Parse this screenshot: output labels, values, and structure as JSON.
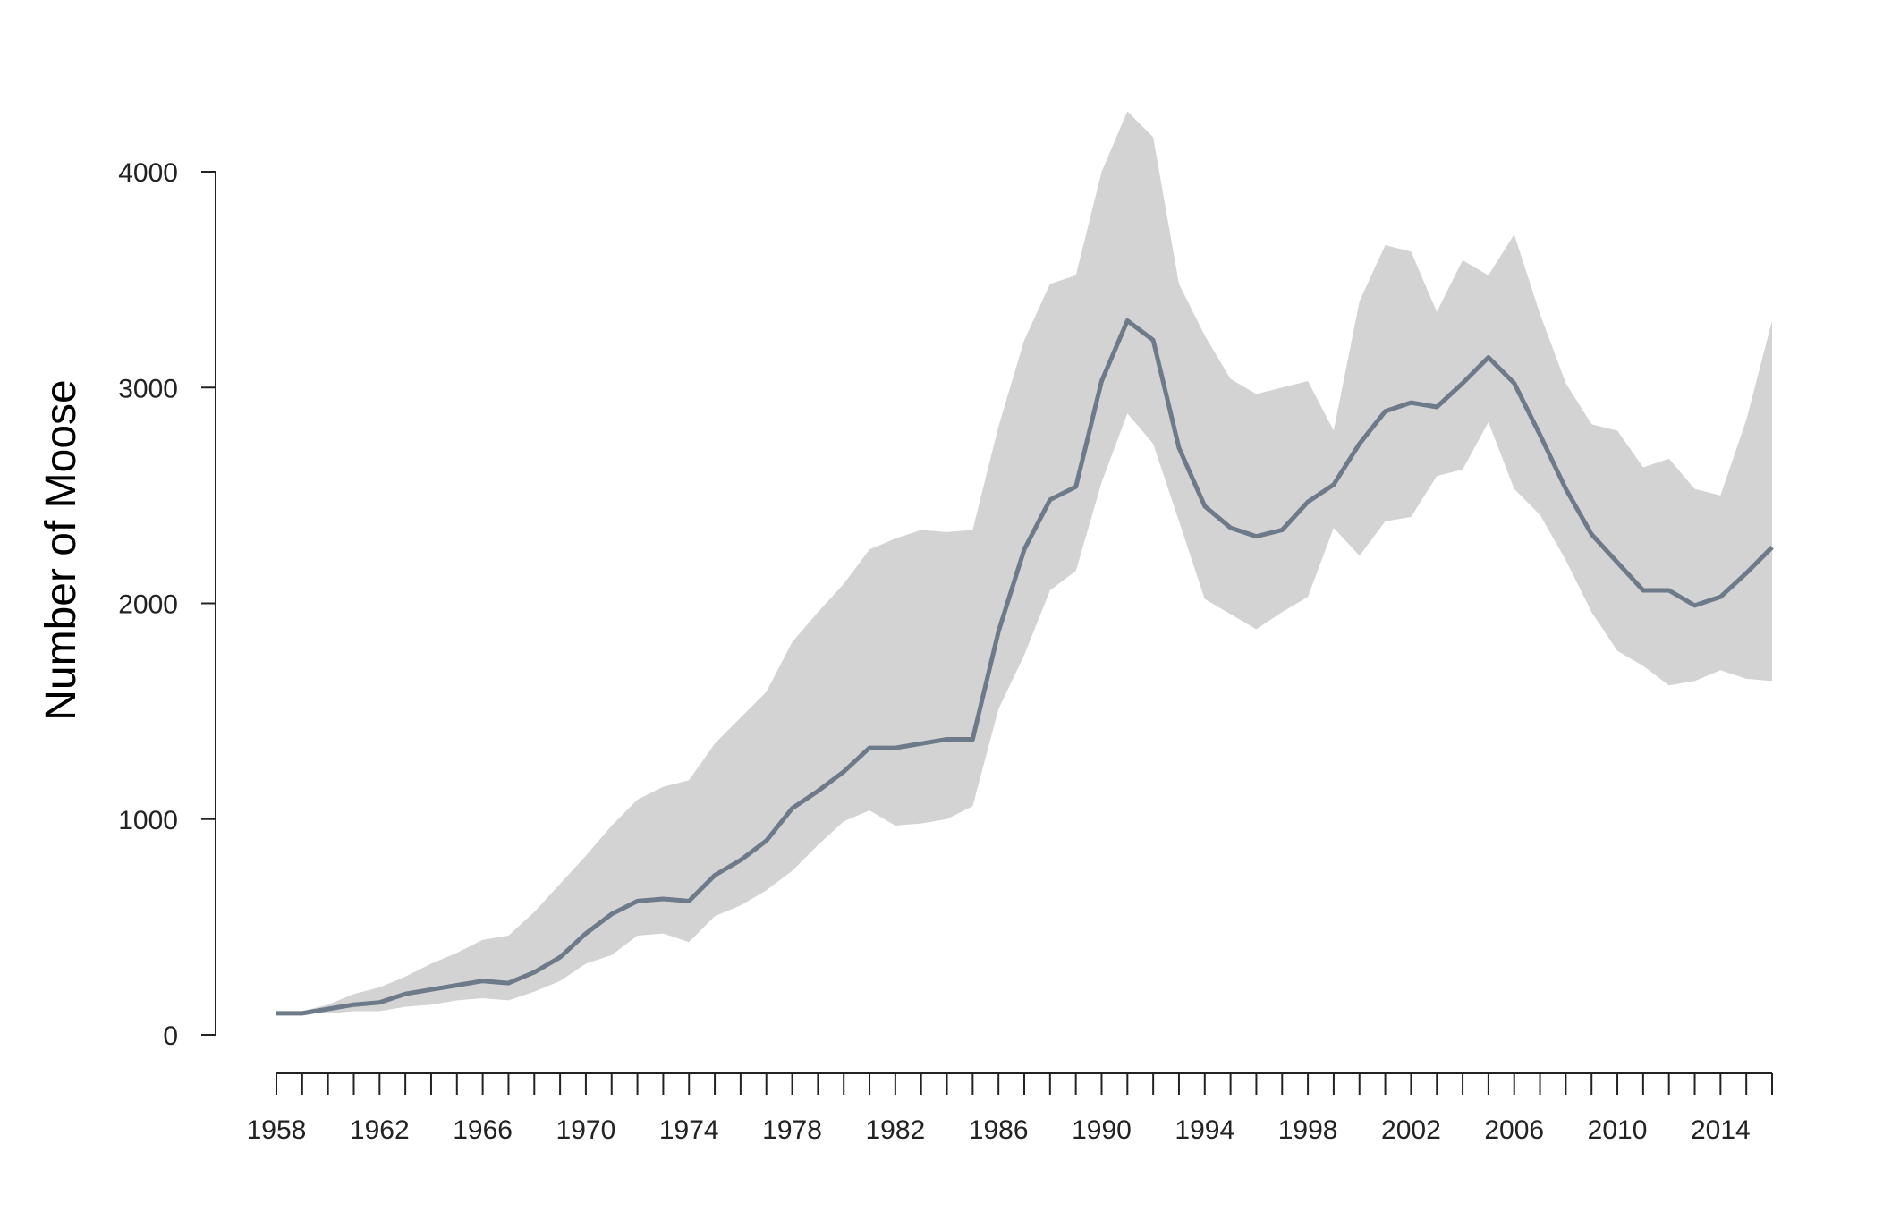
{
  "chart_data": {
    "type": "line",
    "title": "",
    "xlabel": "",
    "ylabel": "Number of Moose",
    "xlim": [
      1958,
      2016
    ],
    "ylim": [
      0,
      4000
    ],
    "y_ticks": [
      0,
      1000,
      2000,
      3000,
      4000
    ],
    "x_ticks_minor_step": 1,
    "x_tick_labels": [
      1958,
      1962,
      1966,
      1970,
      1974,
      1978,
      1982,
      1986,
      1990,
      1994,
      1998,
      2002,
      2006,
      2010,
      2014
    ],
    "grid": false,
    "colors": {
      "line": "#6c7a89",
      "band": "#d3d3d3",
      "axis": "#222222"
    },
    "x": [
      1958,
      1959,
      1960,
      1961,
      1962,
      1963,
      1964,
      1965,
      1966,
      1967,
      1968,
      1969,
      1970,
      1971,
      1972,
      1973,
      1974,
      1975,
      1976,
      1977,
      1978,
      1979,
      1980,
      1981,
      1982,
      1983,
      1984,
      1985,
      1986,
      1987,
      1988,
      1989,
      1990,
      1991,
      1992,
      1993,
      1994,
      1995,
      1996,
      1997,
      1998,
      1999,
      2000,
      2001,
      2002,
      2003,
      2004,
      2005,
      2006,
      2007,
      2008,
      2009,
      2010,
      2011,
      2012,
      2013,
      2014,
      2015,
      2016
    ],
    "series": [
      {
        "values": [
          100,
          100,
          120,
          140,
          150,
          190,
          210,
          230,
          250,
          240,
          290,
          360,
          470,
          560,
          620,
          630,
          620,
          740,
          810,
          900,
          1050,
          1130,
          1220,
          1330,
          1330,
          1350,
          1370,
          1370,
          1870,
          2250,
          2480,
          2540,
          3030,
          3310,
          3220,
          2720,
          2450,
          2350,
          2310,
          2340,
          2470,
          2550,
          2740,
          2890,
          2930,
          2910,
          3020,
          3140,
          3020,
          2780,
          2530,
          2320,
          2190,
          2060,
          2060,
          1990,
          2030,
          2140,
          2260
        ],
        "lower": [
          100,
          100,
          100,
          110,
          110,
          130,
          140,
          160,
          170,
          160,
          200,
          250,
          330,
          370,
          460,
          470,
          430,
          550,
          600,
          670,
          760,
          880,
          990,
          1040,
          970,
          980,
          1000,
          1060,
          1510,
          1760,
          2060,
          2150,
          2560,
          2880,
          2740,
          2380,
          2020,
          1950,
          1880,
          1960,
          2030,
          2350,
          2220,
          2380,
          2400,
          2590,
          2620,
          2840,
          2530,
          2410,
          2200,
          1960,
          1780,
          1710,
          1620,
          1640,
          1690,
          1650,
          1640
        ],
        "upper": [
          100,
          110,
          140,
          190,
          220,
          270,
          330,
          380,
          440,
          460,
          570,
          700,
          830,
          970,
          1090,
          1150,
          1180,
          1350,
          1470,
          1590,
          1820,
          1960,
          2090,
          2250,
          2300,
          2340,
          2330,
          2340,
          2820,
          3220,
          3480,
          3520,
          4000,
          4280,
          4160,
          3480,
          3240,
          3040,
          2970,
          3000,
          3030,
          2800,
          3400,
          3660,
          3630,
          3350,
          3590,
          3520,
          3710,
          3340,
          3020,
          2830,
          2800,
          2630,
          2670,
          2530,
          2500,
          2850,
          3310
        ]
      }
    ]
  }
}
